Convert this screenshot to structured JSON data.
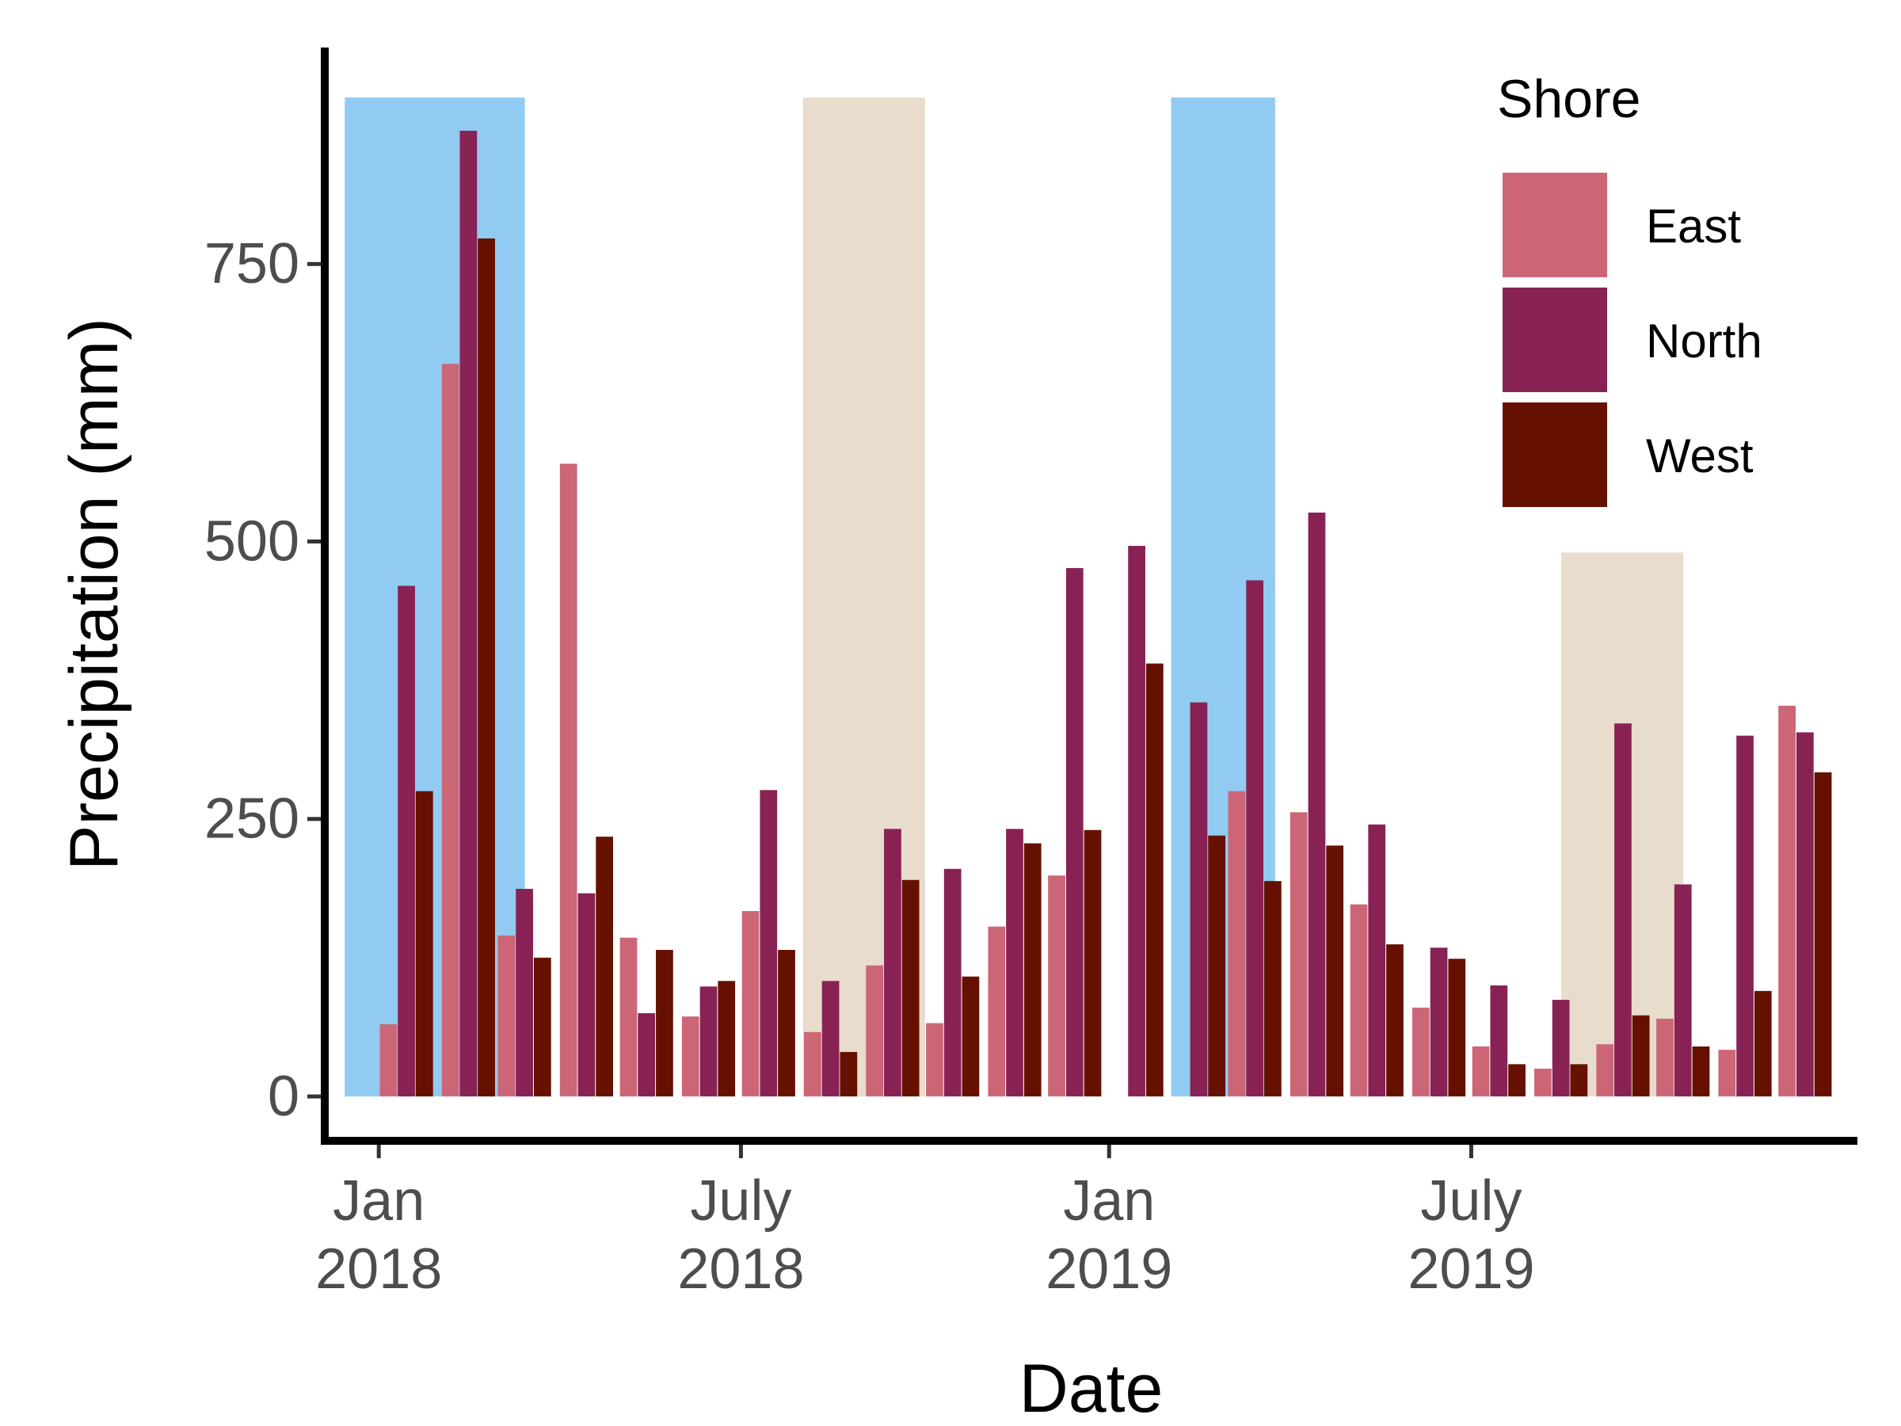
{
  "chart_data": {
    "type": "bar",
    "xlabel": "Date",
    "ylabel": "Precipitation (mm)",
    "ylim": [
      -40,
      945
    ],
    "y_ticks": [
      0,
      250,
      500,
      750
    ],
    "x_ticks": [
      {
        "line1": "Jan",
        "line2": "2018",
        "date": "2018-01-01"
      },
      {
        "line1": "July",
        "line2": "2018",
        "date": "2018-07-01"
      },
      {
        "line1": "Jan",
        "line2": "2019",
        "date": "2019-01-01"
      },
      {
        "line1": "July",
        "line2": "2019",
        "date": "2019-07-01"
      }
    ],
    "xlim": [
      "2017-12-05",
      "2020-01-10"
    ],
    "grid": false,
    "legend": {
      "title": "Shore",
      "position": "top-right"
    },
    "shaded_periods": [
      {
        "start": "2017-12-15",
        "end": "2018-03-15",
        "ymax": 900,
        "color": "#92CBF1"
      },
      {
        "start": "2018-08-01",
        "end": "2018-10-01",
        "ymax": 900,
        "color": "#E8DCCC"
      },
      {
        "start": "2019-02-01",
        "end": "2019-03-25",
        "ymax": 900,
        "color": "#92CBF1"
      },
      {
        "start": "2019-08-15",
        "end": "2019-10-15",
        "ymax": 490,
        "color": "#E8DCCC"
      }
    ],
    "dates": [
      "2018-01",
      "2018-02",
      "2018-03",
      "2018-04",
      "2018-05",
      "2018-06",
      "2018-07",
      "2018-08",
      "2018-09",
      "2018-10",
      "2018-11",
      "2018-12",
      "2019-01",
      "2019-02",
      "2019-03",
      "2019-04",
      "2019-05",
      "2019-06",
      "2019-07",
      "2019-08",
      "2019-09",
      "2019-10",
      "2019-11",
      "2019-12"
    ],
    "series": [
      {
        "name": "East",
        "color": "#CC6677",
        "values": [
          65,
          660,
          145,
          570,
          143,
          72,
          167,
          58,
          118,
          66,
          153,
          199,
          0,
          0,
          275,
          256,
          173,
          80,
          45,
          25,
          47,
          70,
          42,
          352
        ]
      },
      {
        "name": "North",
        "color": "#882255",
        "values": [
          460,
          870,
          187,
          183,
          75,
          99,
          276,
          104,
          241,
          205,
          241,
          476,
          496,
          355,
          465,
          526,
          245,
          134,
          100,
          87,
          336,
          191,
          325,
          328
        ]
      },
      {
        "name": "West",
        "color": "#661100",
        "values": [
          275,
          773,
          125,
          234,
          132,
          104,
          132,
          40,
          195,
          108,
          228,
          240,
          390,
          235,
          194,
          226,
          137,
          124,
          29,
          29,
          73,
          45,
          95,
          292
        ]
      }
    ]
  }
}
